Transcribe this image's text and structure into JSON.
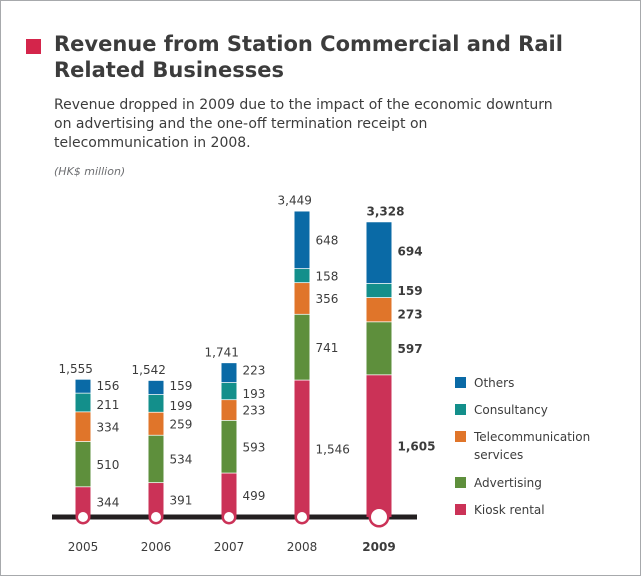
{
  "title": "Revenue from Station Commercial and Rail Related Businesses",
  "subtitle": "Revenue dropped in 2009 due to the impact of the economic downturn on advertising and the one-off termination receipt on telecommunication in 2008.",
  "unit": "(HK$ million)",
  "colors": {
    "accent": "#d4254b",
    "text": "#3c3c3c",
    "axis": "#231f20"
  },
  "chart_data": {
    "type": "bar",
    "stacked": true,
    "categories": [
      "2005",
      "2006",
      "2007",
      "2008",
      "2009"
    ],
    "totals": [
      "1,555",
      "1,542",
      "1,741",
      "3,449",
      "3,328"
    ],
    "highlight_category": "2009",
    "series": [
      {
        "name": "Kiosk rental",
        "color": "#cb3257",
        "values": [
          344,
          391,
          499,
          1546,
          1605
        ],
        "labels": [
          "344",
          "391",
          "499",
          "1,546",
          "1,605"
        ]
      },
      {
        "name": "Advertising",
        "color": "#5e8f3c",
        "values": [
          510,
          534,
          593,
          741,
          597
        ],
        "labels": [
          "510",
          "534",
          "593",
          "741",
          "597"
        ]
      },
      {
        "name": "Telecommunication services",
        "color": "#e0752a",
        "values": [
          334,
          259,
          233,
          356,
          273
        ],
        "labels": [
          "334",
          "259",
          "233",
          "356",
          "273"
        ]
      },
      {
        "name": "Consultancy",
        "color": "#138f8b",
        "values": [
          211,
          199,
          193,
          158,
          159
        ],
        "labels": [
          "211",
          "199",
          "193",
          "158",
          "159"
        ]
      },
      {
        "name": "Others",
        "color": "#0a6aa6",
        "values": [
          156,
          159,
          223,
          648,
          694
        ],
        "labels": [
          "156",
          "159",
          "223",
          "648",
          "694"
        ]
      }
    ],
    "legend": [
      {
        "label": "Others",
        "color": "#0a6aa6"
      },
      {
        "label": "Consultancy",
        "color": "#138f8b"
      },
      {
        "label": "Telecommunication services",
        "color": "#e0752a"
      },
      {
        "label": "Advertising",
        "color": "#5e8f3c"
      },
      {
        "label": "Kiosk rental",
        "color": "#cb3257"
      }
    ],
    "legend_position": "right"
  }
}
